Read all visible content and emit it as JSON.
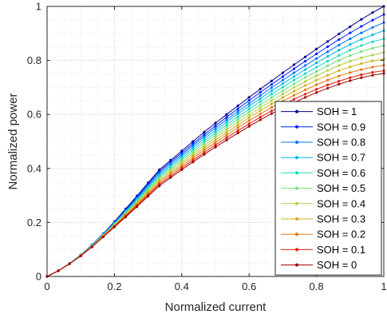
{
  "chart_data": {
    "type": "line",
    "title": "",
    "xlabel": "Normalized current",
    "ylabel": "Normalized power",
    "xlim": [
      0,
      1
    ],
    "ylim": [
      0,
      1
    ],
    "xticks": [
      0,
      0.2,
      0.4,
      0.6,
      0.8,
      1
    ],
    "yticks": [
      0,
      0.2,
      0.4,
      0.6,
      0.8,
      1
    ],
    "xtick_labels": [
      "0",
      "0.2",
      "0.4",
      "0.6",
      "0.8",
      "1"
    ],
    "ytick_labels": [
      "0",
      "0.2",
      "0.4",
      "0.6",
      "0.8",
      "1"
    ],
    "grid": "dotted",
    "minor_grid": true,
    "legend_position": "bottom-right",
    "x": [
      0,
      0.0333,
      0.0667,
      0.1,
      0.1333,
      0.1667,
      0.2,
      0.2333,
      0.2667,
      0.3,
      0.3333,
      0.3667,
      0.4,
      0.4333,
      0.4667,
      0.5,
      0.5333,
      0.5667,
      0.6,
      0.6333,
      0.6667,
      0.7,
      0.7333,
      0.7667,
      0.8,
      0.8333,
      0.8667,
      0.9,
      0.9333,
      0.9667,
      1
    ],
    "series": [
      {
        "name": "SOH = 1",
        "color": "#00008f",
        "values": [
          0,
          0.021,
          0.048,
          0.08,
          0.117,
          0.158,
          0.203,
          0.25,
          0.298,
          0.347,
          0.395,
          0.43,
          0.465,
          0.5,
          0.535,
          0.568,
          0.6,
          0.632,
          0.663,
          0.694,
          0.724,
          0.754,
          0.784,
          0.813,
          0.842,
          0.87,
          0.898,
          0.925,
          0.952,
          0.977,
          1.0
        ]
      },
      {
        "name": "SOH = 0.9",
        "color": "#0020ff",
        "values": [
          0,
          0.021,
          0.048,
          0.08,
          0.117,
          0.157,
          0.201,
          0.247,
          0.294,
          0.342,
          0.389,
          0.424,
          0.458,
          0.492,
          0.526,
          0.558,
          0.59,
          0.621,
          0.652,
          0.682,
          0.711,
          0.74,
          0.769,
          0.797,
          0.824,
          0.851,
          0.877,
          0.902,
          0.926,
          0.949,
          0.97
        ]
      },
      {
        "name": "SOH = 0.8",
        "color": "#0070ff",
        "values": [
          0,
          0.021,
          0.048,
          0.08,
          0.116,
          0.156,
          0.199,
          0.244,
          0.29,
          0.337,
          0.383,
          0.418,
          0.451,
          0.485,
          0.518,
          0.55,
          0.581,
          0.611,
          0.641,
          0.67,
          0.699,
          0.727,
          0.754,
          0.781,
          0.807,
          0.832,
          0.857,
          0.88,
          0.902,
          0.922,
          0.94
        ]
      },
      {
        "name": "SOH = 0.7",
        "color": "#00b8e8",
        "values": [
          0,
          0.021,
          0.048,
          0.079,
          0.115,
          0.155,
          0.197,
          0.241,
          0.286,
          0.332,
          0.377,
          0.411,
          0.444,
          0.477,
          0.51,
          0.541,
          0.572,
          0.602,
          0.631,
          0.659,
          0.687,
          0.714,
          0.74,
          0.766,
          0.791,
          0.815,
          0.838,
          0.859,
          0.878,
          0.895,
          0.91
        ]
      },
      {
        "name": "SOH = 0.6",
        "color": "#20d8c0",
        "values": [
          0,
          0.021,
          0.048,
          0.079,
          0.114,
          0.154,
          0.195,
          0.238,
          0.282,
          0.327,
          0.371,
          0.405,
          0.437,
          0.469,
          0.501,
          0.532,
          0.562,
          0.591,
          0.62,
          0.648,
          0.675,
          0.701,
          0.727,
          0.751,
          0.775,
          0.797,
          0.818,
          0.838,
          0.855,
          0.869,
          0.88
        ]
      },
      {
        "name": "SOH = 0.5",
        "color": "#70e080",
        "values": [
          0,
          0.021,
          0.047,
          0.078,
          0.113,
          0.152,
          0.193,
          0.235,
          0.278,
          0.322,
          0.365,
          0.398,
          0.43,
          0.462,
          0.493,
          0.523,
          0.553,
          0.581,
          0.609,
          0.636,
          0.663,
          0.688,
          0.713,
          0.737,
          0.759,
          0.78,
          0.8,
          0.818,
          0.833,
          0.845,
          0.855
        ]
      },
      {
        "name": "SOH = 0.4",
        "color": "#b0d040",
        "values": [
          0,
          0.021,
          0.047,
          0.078,
          0.112,
          0.151,
          0.191,
          0.232,
          0.274,
          0.317,
          0.359,
          0.392,
          0.423,
          0.454,
          0.484,
          0.514,
          0.543,
          0.571,
          0.598,
          0.625,
          0.651,
          0.676,
          0.7,
          0.722,
          0.743,
          0.763,
          0.781,
          0.797,
          0.81,
          0.82,
          0.83
        ]
      },
      {
        "name": "SOH = 0.3",
        "color": "#d0b020",
        "values": [
          0,
          0.021,
          0.047,
          0.077,
          0.111,
          0.15,
          0.189,
          0.229,
          0.27,
          0.312,
          0.353,
          0.385,
          0.416,
          0.446,
          0.476,
          0.505,
          0.533,
          0.561,
          0.588,
          0.614,
          0.639,
          0.663,
          0.686,
          0.707,
          0.727,
          0.745,
          0.762,
          0.776,
          0.788,
          0.798,
          0.805
        ]
      },
      {
        "name": "SOH = 0.2",
        "color": "#e87810",
        "values": [
          0,
          0.021,
          0.047,
          0.077,
          0.111,
          0.149,
          0.187,
          0.226,
          0.266,
          0.307,
          0.347,
          0.379,
          0.409,
          0.439,
          0.468,
          0.496,
          0.524,
          0.551,
          0.577,
          0.602,
          0.626,
          0.649,
          0.671,
          0.691,
          0.71,
          0.727,
          0.742,
          0.755,
          0.766,
          0.775,
          0.782
        ]
      },
      {
        "name": "SOH = 0.1",
        "color": "#e02010",
        "values": [
          0,
          0.021,
          0.047,
          0.076,
          0.11,
          0.147,
          0.185,
          0.223,
          0.262,
          0.302,
          0.341,
          0.372,
          0.402,
          0.431,
          0.459,
          0.487,
          0.514,
          0.54,
          0.565,
          0.59,
          0.613,
          0.635,
          0.656,
          0.675,
          0.693,
          0.709,
          0.723,
          0.736,
          0.747,
          0.756,
          0.762
        ]
      },
      {
        "name": "SOH = 0",
        "color": "#a00000",
        "values": [
          0,
          0.021,
          0.047,
          0.076,
          0.109,
          0.146,
          0.183,
          0.22,
          0.258,
          0.297,
          0.335,
          0.366,
          0.395,
          0.424,
          0.452,
          0.479,
          0.505,
          0.531,
          0.556,
          0.58,
          0.603,
          0.624,
          0.644,
          0.663,
          0.681,
          0.697,
          0.712,
          0.725,
          0.736,
          0.745,
          0.752
        ]
      }
    ]
  }
}
